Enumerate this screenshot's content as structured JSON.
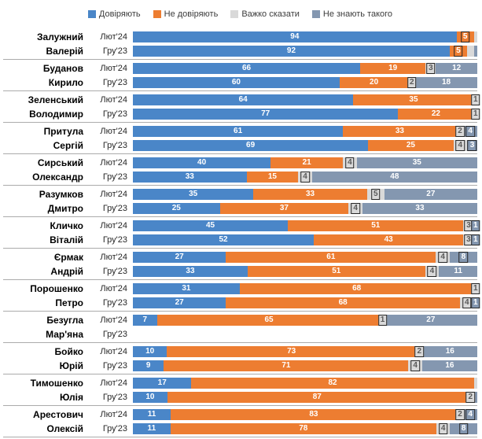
{
  "legend": {
    "items": [
      {
        "label": "Довіряють",
        "color": "#4a86c8"
      },
      {
        "label": "Не довіряють",
        "color": "#ed7d31"
      },
      {
        "label": "Важко сказати",
        "color": "#d9d9d9"
      },
      {
        "label": "Не знають такого",
        "color": "#8497b0"
      }
    ]
  },
  "chart_data": {
    "type": "bar",
    "orientation": "horizontal",
    "stacked": true,
    "unit": "percent",
    "xlim": [
      0,
      100
    ],
    "grid": false,
    "legend_position": "top",
    "series": [
      "Довіряють",
      "Не довіряють",
      "Важко сказати",
      "Не знають такого"
    ],
    "colors": [
      "#4a86c8",
      "#ed7d31",
      "#d9d9d9",
      "#8497b0"
    ],
    "label_colors": [
      "#ffffff",
      "#ffffff",
      "#595959",
      "#ffffff"
    ],
    "groups": [
      {
        "surname": "Залужний",
        "firstname": "Валерій",
        "rows": [
          {
            "period": "Лют'24",
            "values": [
              94,
              5,
              1,
              0
            ],
            "labels": [
              "94",
              "5",
              "",
              ""
            ]
          },
          {
            "period": "Гру'23",
            "values": [
              92,
              5,
              2,
              1
            ],
            "labels": [
              "92",
              "5",
              "",
              ""
            ]
          }
        ]
      },
      {
        "surname": "Буданов",
        "firstname": "Кирило",
        "rows": [
          {
            "period": "Лют'24",
            "values": [
              66,
              19,
              3,
              12
            ],
            "labels": [
              "66",
              "19",
              "3",
              "12"
            ]
          },
          {
            "period": "Гру'23",
            "values": [
              60,
              20,
              2,
              18
            ],
            "labels": [
              "60",
              "20",
              "2",
              "18"
            ]
          }
        ]
      },
      {
        "surname": "Зеленський",
        "firstname": "Володимир",
        "rows": [
          {
            "period": "Лют'24",
            "values": [
              64,
              35,
              1,
              0
            ],
            "labels": [
              "64",
              "35",
              "1",
              ""
            ]
          },
          {
            "period": "Гру'23",
            "values": [
              77,
              22,
              1,
              0
            ],
            "labels": [
              "77",
              "22",
              "1",
              ""
            ]
          }
        ]
      },
      {
        "surname": "Притула",
        "firstname": "Сергій",
        "rows": [
          {
            "period": "Лют'24",
            "values": [
              61,
              33,
              2,
              4
            ],
            "labels": [
              "61",
              "33",
              "2",
              "4"
            ]
          },
          {
            "period": "Гру'23",
            "values": [
              69,
              25,
              4,
              3
            ],
            "labels": [
              "69",
              "25",
              "4",
              "3"
            ]
          }
        ]
      },
      {
        "surname": "Сирський",
        "firstname": "Олександр",
        "rows": [
          {
            "period": "Лют'24",
            "values": [
              40,
              21,
              4,
              35
            ],
            "labels": [
              "40",
              "21",
              "4",
              "35"
            ]
          },
          {
            "period": "Гру'23",
            "values": [
              33,
              15,
              4,
              48
            ],
            "labels": [
              "33",
              "15",
              "4",
              "48"
            ]
          }
        ]
      },
      {
        "surname": "Разумков",
        "firstname": "Дмитро",
        "rows": [
          {
            "period": "Лют'24",
            "values": [
              35,
              33,
              5,
              27
            ],
            "labels": [
              "35",
              "33",
              "5",
              "27"
            ]
          },
          {
            "period": "Гру'23",
            "values": [
              25,
              37,
              4,
              33
            ],
            "labels": [
              "25",
              "37",
              "4",
              "33"
            ]
          }
        ]
      },
      {
        "surname": "Кличко",
        "firstname": "Віталій",
        "rows": [
          {
            "period": "Лют'24",
            "values": [
              45,
              51,
              3,
              1
            ],
            "labels": [
              "45",
              "51",
              "3",
              "1"
            ]
          },
          {
            "period": "Гру'23",
            "values": [
              52,
              43,
              3,
              1
            ],
            "labels": [
              "52",
              "43",
              "3",
              "1"
            ]
          }
        ]
      },
      {
        "surname": "Єрмак",
        "firstname": "Андрій",
        "rows": [
          {
            "period": "Лют'24",
            "values": [
              27,
              61,
              4,
              8
            ],
            "labels": [
              "27",
              "61",
              "4",
              "8"
            ]
          },
          {
            "period": "Гру'23",
            "values": [
              33,
              51,
              4,
              11
            ],
            "labels": [
              "33",
              "51",
              "4",
              "11"
            ]
          }
        ]
      },
      {
        "surname": "Порошенко",
        "firstname": "Петро",
        "rows": [
          {
            "period": "Лют'24",
            "values": [
              31,
              68,
              1,
              0
            ],
            "labels": [
              "31",
              "68",
              "1",
              ""
            ]
          },
          {
            "period": "Гру'23",
            "values": [
              27,
              68,
              4,
              1
            ],
            "labels": [
              "27",
              "68",
              "4",
              "1"
            ]
          }
        ]
      },
      {
        "surname": "Безугла",
        "firstname": "Мар'яна",
        "rows": [
          {
            "period": "Лют'24",
            "values": [
              7,
              65,
              1,
              27
            ],
            "labels": [
              "7",
              "65",
              "1",
              "27"
            ]
          },
          {
            "period": "Гру'23",
            "values": [
              0,
              0,
              0,
              0
            ],
            "labels": [
              "",
              "",
              "",
              ""
            ]
          }
        ]
      },
      {
        "surname": "Бойко",
        "firstname": "Юрій",
        "rows": [
          {
            "period": "Лют'24",
            "values": [
              10,
              73,
              2,
              16
            ],
            "labels": [
              "10",
              "73",
              "2",
              "16"
            ]
          },
          {
            "period": "Гру'23",
            "values": [
              9,
              71,
              4,
              16
            ],
            "labels": [
              "9",
              "71",
              "4",
              "16"
            ]
          }
        ]
      },
      {
        "surname": "Тимошенко",
        "firstname": "Юлія",
        "rows": [
          {
            "period": "Лют'24",
            "values": [
              17,
              82,
              1,
              0
            ],
            "labels": [
              "17",
              "82",
              "",
              ""
            ]
          },
          {
            "period": "Гру'23",
            "values": [
              10,
              87,
              2,
              1
            ],
            "labels": [
              "10",
              "87",
              "2",
              ""
            ]
          }
        ]
      },
      {
        "surname": "Арестович",
        "firstname": "Олексій",
        "rows": [
          {
            "period": "Лют'24",
            "values": [
              11,
              83,
              2,
              4
            ],
            "labels": [
              "11",
              "83",
              "2",
              "4"
            ]
          },
          {
            "period": "Гру'23",
            "values": [
              11,
              78,
              4,
              8
            ],
            "labels": [
              "11",
              "78",
              "4",
              "8"
            ]
          }
        ]
      }
    ]
  }
}
